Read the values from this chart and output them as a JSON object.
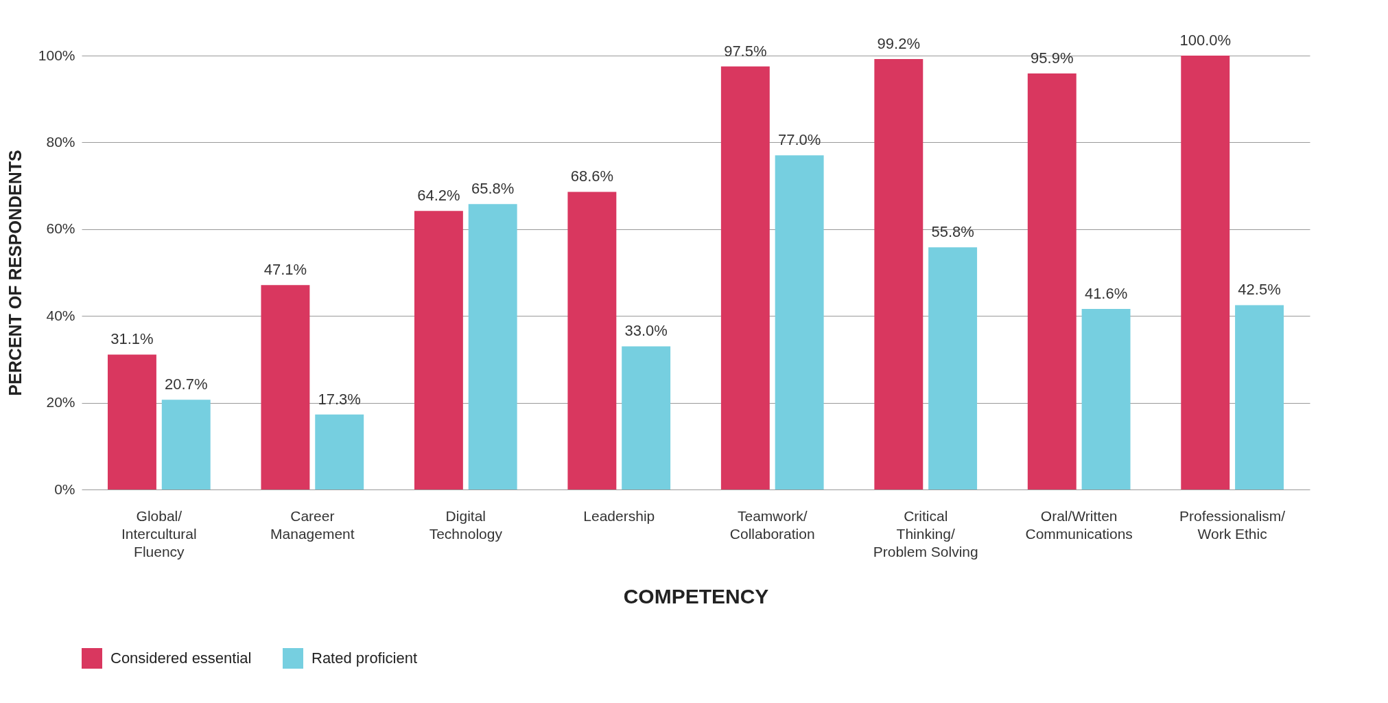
{
  "chart_data": {
    "type": "bar",
    "xlabel": "COMPETENCY",
    "ylabel": "PERCENT OF RESPONDENTS",
    "categories": [
      "Global/\nIntercultural\nFluency",
      "Career\nManagement",
      "Digital\nTechnology",
      "Leadership",
      "Teamwork/\nCollaboration",
      "Critical\nThinking/\nProblem Solving",
      "Oral/Written\nCommunications",
      "Professionalism/\nWork Ethic"
    ],
    "series": [
      {
        "name": "Considered essential",
        "color": "#d9375f",
        "values": [
          31.1,
          47.1,
          64.2,
          68.6,
          97.5,
          99.2,
          95.9,
          100.0
        ],
        "value_labels": [
          "31.1%",
          "47.1%",
          "64.2%",
          "68.6%",
          "97.5%",
          "99.2%",
          "95.9%",
          "100.0%"
        ]
      },
      {
        "name": "Rated proficient",
        "color": "#76cfe0",
        "values": [
          20.7,
          17.3,
          65.8,
          33.0,
          77.0,
          55.8,
          41.6,
          42.5
        ],
        "value_labels": [
          "20.7%",
          "17.3%",
          "65.8%",
          "33.0%",
          "77.0%",
          "55.8%",
          "41.6%",
          "42.5%"
        ]
      }
    ],
    "ylim": [
      0,
      100
    ],
    "yticks": [
      {
        "value": 0,
        "label": "0%"
      },
      {
        "value": 20,
        "label": "20%"
      },
      {
        "value": 40,
        "label": "40%"
      },
      {
        "value": 60,
        "label": "60%"
      },
      {
        "value": 80,
        "label": "80%"
      },
      {
        "value": 100,
        "label": "100%"
      }
    ],
    "grid": "y",
    "legend": "bottom"
  }
}
